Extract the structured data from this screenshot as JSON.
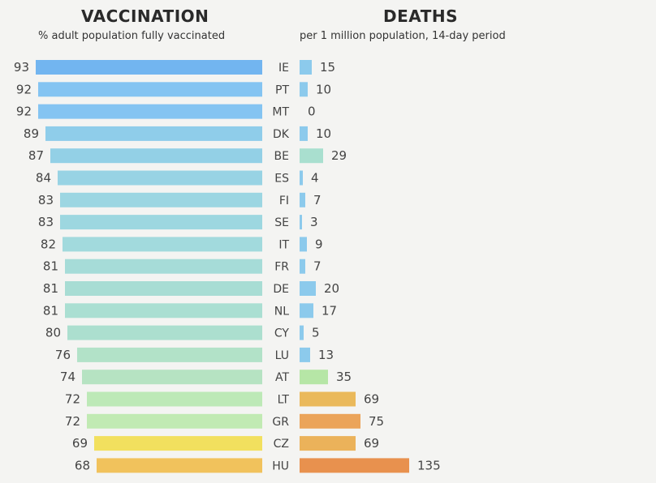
{
  "chart_data": [
    {
      "type": "bar",
      "title": "VACCINATION",
      "subtitle": "% adult population fully vaccinated",
      "orientation": "horizontal",
      "direction": "right-to-left",
      "xlim": [
        0,
        93
      ],
      "categories": [
        "IE",
        "PT",
        "MT",
        "DK",
        "BE",
        "ES",
        "FI",
        "SE",
        "IT",
        "FR",
        "DE",
        "NL",
        "CY",
        "LU",
        "AT",
        "LT",
        "GR",
        "CZ",
        "HU"
      ],
      "values": [
        93,
        92,
        92,
        89,
        87,
        84,
        83,
        83,
        82,
        81,
        81,
        81,
        80,
        76,
        74,
        72,
        72,
        69,
        68
      ],
      "colors": [
        "#72b5f0",
        "#84c4f2",
        "#84c4f2",
        "#8fcdea",
        "#93d0e6",
        "#98d3e4",
        "#9cd6e2",
        "#9dd7e0",
        "#a2dadd",
        "#a6dcd8",
        "#a8ddd4",
        "#aadfd2",
        "#acdfcf",
        "#b2e2c8",
        "#b6e3c2",
        "#bde9b7",
        "#c1eab3",
        "#f2e05e",
        "#f1c25c"
      ]
    },
    {
      "type": "bar",
      "title": "DEATHS",
      "subtitle": "per 1 million population, 14-day period",
      "orientation": "horizontal",
      "xlim": [
        0,
        135
      ],
      "categories": [
        "IE",
        "PT",
        "MT",
        "DK",
        "BE",
        "ES",
        "FI",
        "SE",
        "IT",
        "FR",
        "DE",
        "NL",
        "CY",
        "LU",
        "AT",
        "LT",
        "GR",
        "CZ",
        "HU"
      ],
      "values": [
        15,
        10,
        0,
        10,
        29,
        4,
        7,
        3,
        9,
        7,
        20,
        17,
        5,
        13,
        35,
        69,
        75,
        69,
        135
      ],
      "colors": [
        "#8ccaec",
        "#8ccaec",
        "#8ccaec",
        "#8ccaec",
        "#a9dfcf",
        "#8ccaec",
        "#8ccaec",
        "#8ccaec",
        "#8ccaec",
        "#8ccaec",
        "#8ccaec",
        "#8ccaec",
        "#8ccaec",
        "#8ccaec",
        "#b6e6a6",
        "#eab95b",
        "#eba45a",
        "#ebb25a",
        "#e8914e"
      ]
    }
  ]
}
